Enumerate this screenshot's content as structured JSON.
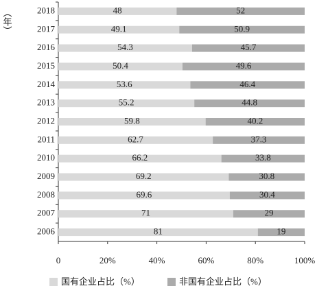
{
  "chart_data": {
    "type": "stacked_bar_horizontal",
    "y_label": "（年）",
    "categories": [
      "2018",
      "2017",
      "2016",
      "2015",
      "2014",
      "2013",
      "2012",
      "2011",
      "2010",
      "2009",
      "2008",
      "2007",
      "2006"
    ],
    "series": [
      {
        "name": "国有企业占比（%）",
        "color": "#d9d9d9",
        "values": [
          48,
          49.1,
          54.3,
          50.4,
          53.6,
          55.2,
          59.8,
          62.7,
          66.2,
          69.2,
          69.6,
          71,
          81
        ]
      },
      {
        "name": "非国有企业占比（%）",
        "color": "#ababab",
        "values": [
          52,
          50.9,
          45.7,
          49.6,
          46.4,
          44.8,
          40.2,
          37.3,
          33.8,
          30.8,
          30.4,
          29,
          19
        ]
      }
    ],
    "xlim": [
      0,
      100
    ],
    "xticks": [
      0,
      {
        "value": 20,
        "label": "20%"
      },
      {
        "value": 40,
        "label": "40%"
      },
      {
        "value": 60,
        "label": "60%"
      },
      {
        "value": 80,
        "label": "80%"
      },
      {
        "value": 100,
        "label": "100%"
      }
    ]
  }
}
